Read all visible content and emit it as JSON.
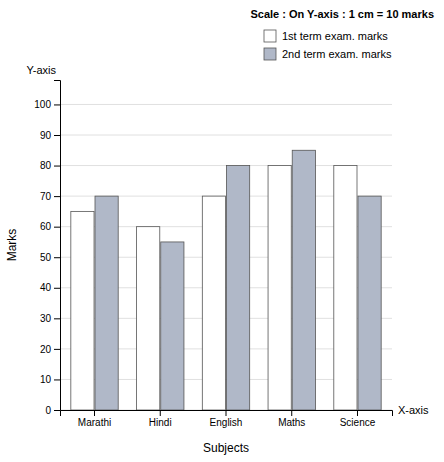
{
  "chart_data": {
    "type": "bar",
    "categories": [
      "Marathi",
      "Hindi",
      "English",
      "Maths",
      "Science"
    ],
    "series": [
      {
        "name": "1st term exam. marks",
        "color": "#ffffff",
        "values": [
          65,
          60,
          70,
          80,
          80
        ]
      },
      {
        "name": "2nd term exam. marks",
        "color": "#b0b8c8",
        "values": [
          70,
          55,
          80,
          85,
          70
        ]
      }
    ],
    "x_label": "Subjects",
    "y_label": "Marks",
    "annotations": [
      "Y-axis",
      "X-axis",
      "Scale : On Y-axis : 1 cm = 10 marks"
    ],
    "ylim": [
      0,
      108
    ],
    "yticks": [
      0,
      10,
      20,
      30,
      40,
      50,
      60,
      70,
      80,
      90,
      100
    ],
    "grid": true,
    "legend": "upper right"
  }
}
